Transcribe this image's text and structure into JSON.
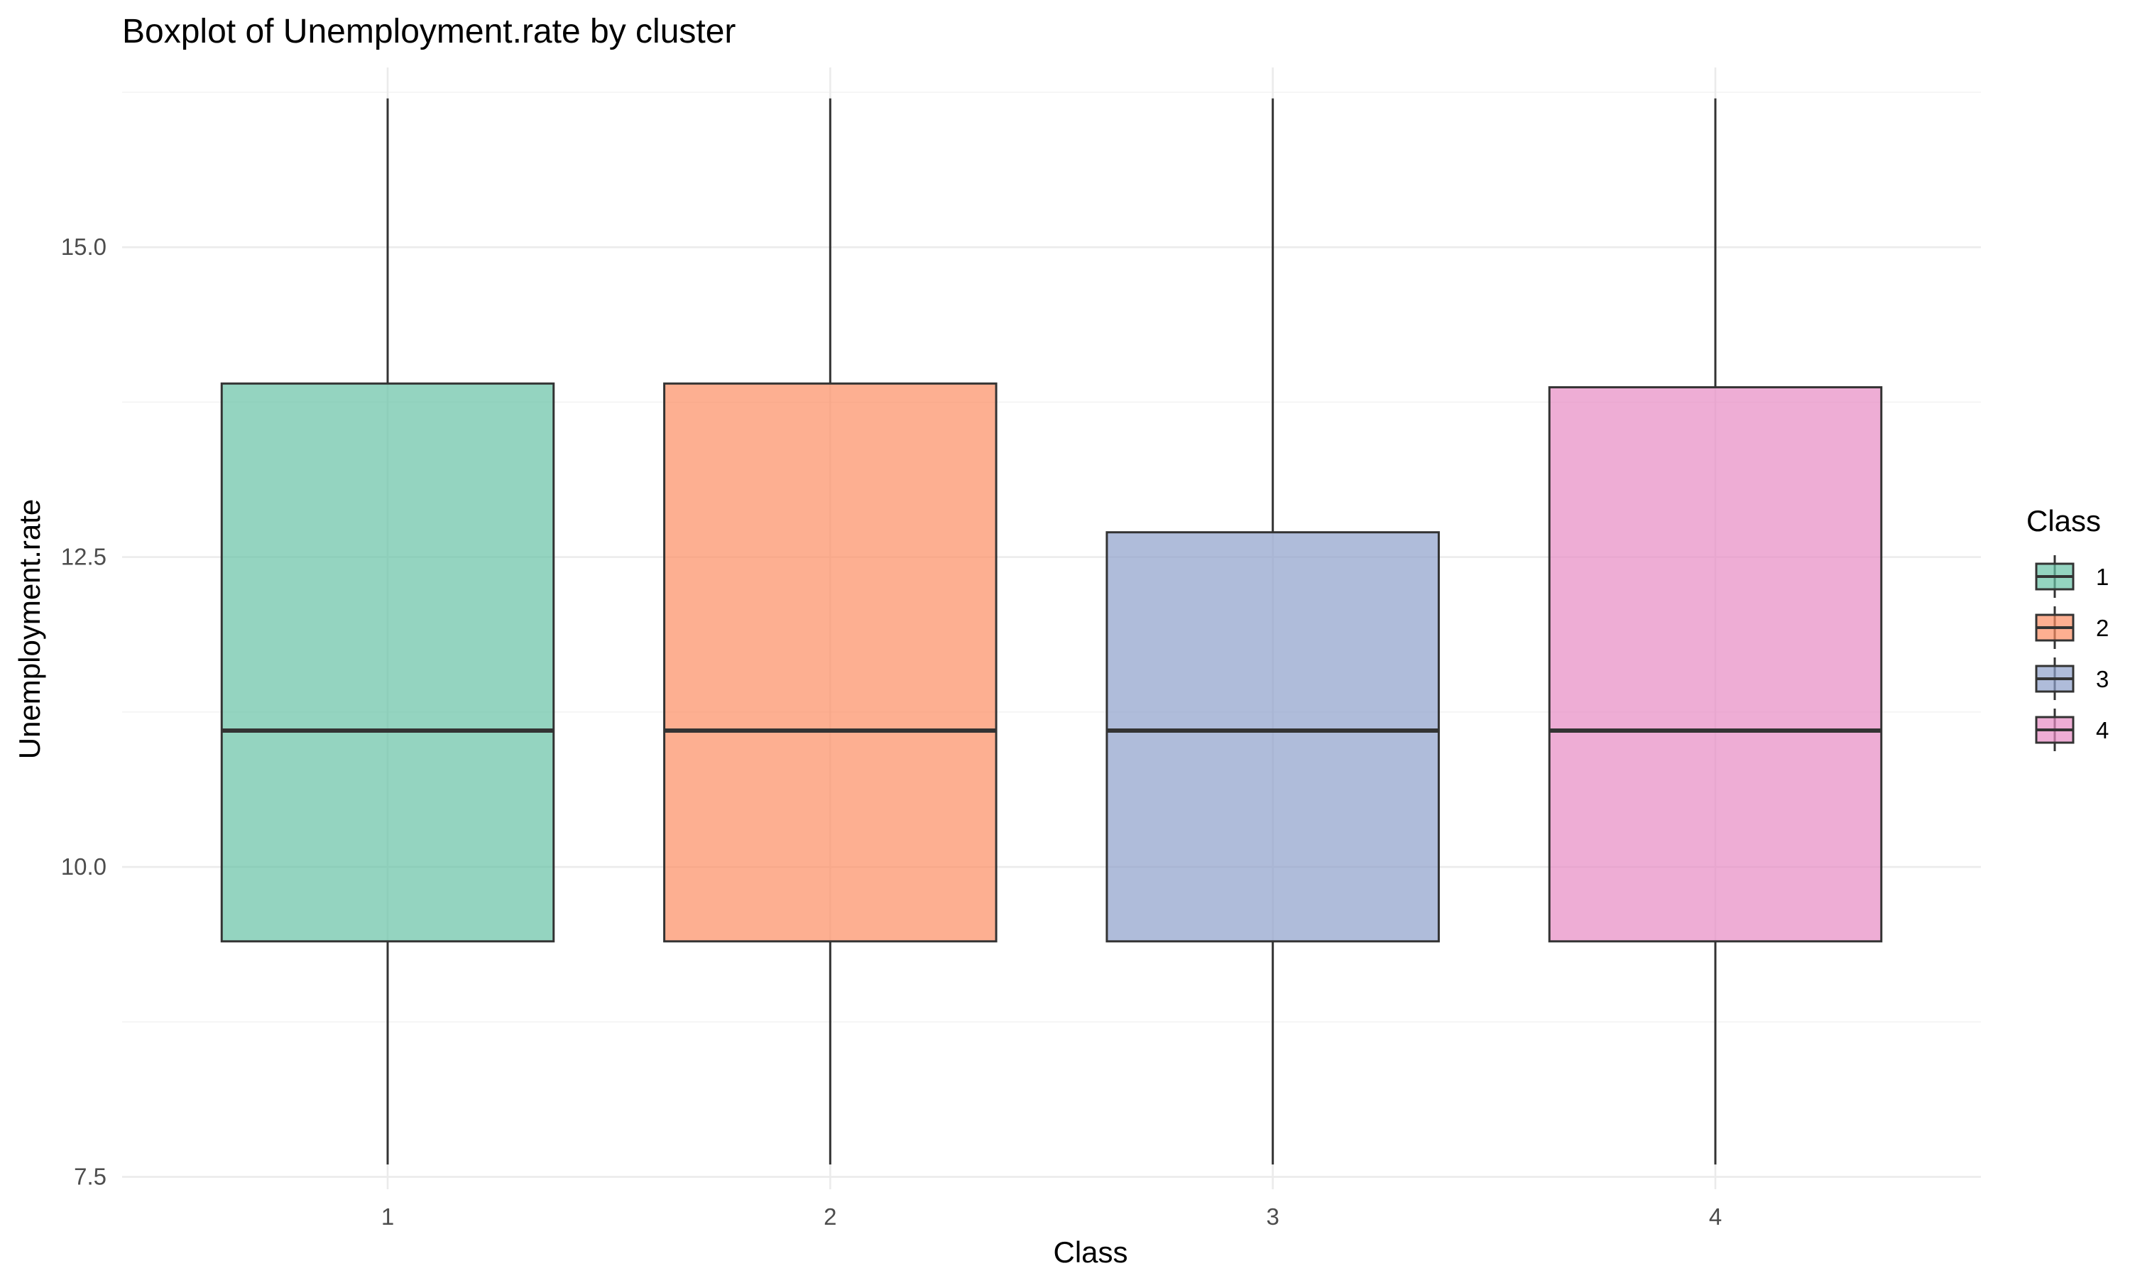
{
  "chart_data": {
    "type": "boxplot",
    "title": "Boxplot of  Unemployment.rate  by cluster",
    "xlabel": "Class",
    "ylabel": "Unemployment.rate",
    "categories": [
      "1",
      "2",
      "3",
      "4"
    ],
    "ylim": [
      7.4,
      16.45
    ],
    "yticks": [
      7.5,
      10.0,
      12.5,
      15.0
    ],
    "ytick_labels": [
      "7.5",
      "10.0",
      "12.5",
      "15.0"
    ],
    "grid": true,
    "legend": {
      "title": "Class",
      "position": "right",
      "entries": [
        "1",
        "2",
        "3",
        "4"
      ]
    },
    "series": [
      {
        "category": "1",
        "min": 7.6,
        "q1": 9.4,
        "median": 11.1,
        "q3": 13.9,
        "max": 16.2,
        "color": "#66c2a5"
      },
      {
        "category": "2",
        "min": 7.6,
        "q1": 9.4,
        "median": 11.1,
        "q3": 13.9,
        "max": 16.2,
        "color": "#fc8d62"
      },
      {
        "category": "3",
        "min": 7.6,
        "q1": 9.4,
        "median": 11.1,
        "q3": 12.7,
        "max": 16.2,
        "color": "#8da0cb"
      },
      {
        "category": "4",
        "min": 7.6,
        "q1": 9.4,
        "median": 11.1,
        "q3": 13.87,
        "max": 16.2,
        "color": "#e78ac3"
      }
    ],
    "fill_opacity": 0.7,
    "outline_color": "#333333"
  }
}
